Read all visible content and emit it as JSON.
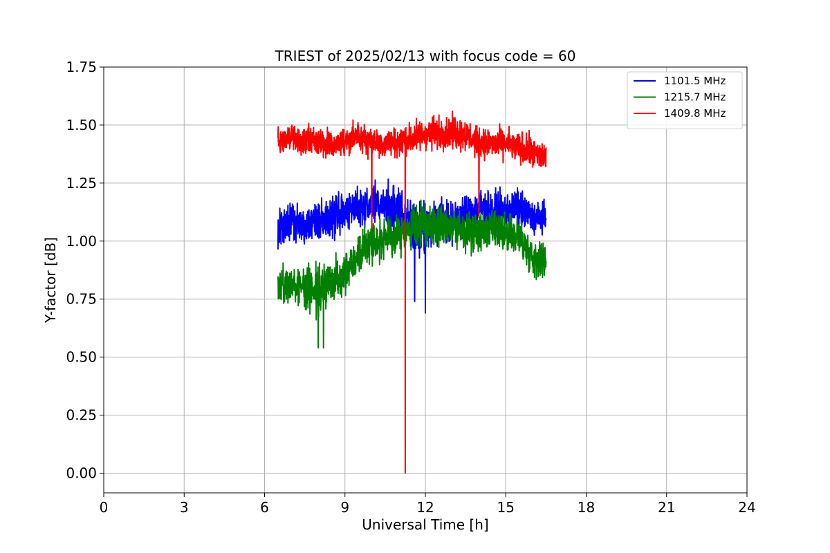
{
  "chart_data": {
    "type": "line",
    "title": "TRIEST of 2025/02/13 with focus code = 60",
    "xlabel": "Universal Time [h]",
    "ylabel": "Y-factor [dB]",
    "xlim": [
      0,
      24
    ],
    "ylim": [
      -0.085,
      1.75
    ],
    "xticks": [
      0,
      3,
      6,
      9,
      12,
      15,
      18,
      21,
      24
    ],
    "xtick_labels": [
      "0",
      "3",
      "6",
      "9",
      "12",
      "15",
      "18",
      "21",
      "24"
    ],
    "yticks": [
      0.0,
      0.25,
      0.5,
      0.75,
      1.0,
      1.25,
      1.5,
      1.75
    ],
    "ytick_labels": [
      "0.00",
      "0.25",
      "0.50",
      "0.75",
      "1.00",
      "1.25",
      "1.50",
      "1.75"
    ],
    "grid": true,
    "legend_position": "top-right",
    "series": [
      {
        "name": "1101.5 MHz",
        "color": "#0000ff",
        "x": [
          6.5,
          7.0,
          7.5,
          8.0,
          8.5,
          9.0,
          9.5,
          10.0,
          10.5,
          11.0,
          11.5,
          12.0,
          12.5,
          13.0,
          13.5,
          14.0,
          14.5,
          15.0,
          15.5,
          16.0,
          16.5
        ],
        "y": [
          1.05,
          1.08,
          1.07,
          1.09,
          1.1,
          1.13,
          1.15,
          1.16,
          1.15,
          1.12,
          1.05,
          1.05,
          1.1,
          1.08,
          1.12,
          1.15,
          1.12,
          1.13,
          1.14,
          1.1,
          1.1
        ],
        "spread": [
          0.1,
          0.11,
          0.11,
          0.12,
          0.12,
          0.12,
          0.12,
          0.12,
          0.14,
          0.16,
          0.18,
          0.15,
          0.13,
          0.13,
          0.12,
          0.12,
          0.12,
          0.12,
          0.12,
          0.1,
          0.1
        ],
        "outliers": [
          {
            "x": 11.6,
            "y": 0.74
          },
          {
            "x": 12.0,
            "y": 0.69
          }
        ]
      },
      {
        "name": "1215.7 MHz",
        "color": "#008000",
        "x": [
          6.5,
          7.0,
          7.5,
          8.0,
          8.5,
          9.0,
          9.5,
          10.0,
          10.5,
          11.0,
          11.5,
          12.0,
          12.5,
          13.0,
          13.5,
          14.0,
          14.5,
          15.0,
          15.5,
          16.0,
          16.5
        ],
        "y": [
          0.8,
          0.82,
          0.8,
          0.78,
          0.82,
          0.87,
          0.95,
          1.0,
          1.0,
          1.03,
          1.05,
          1.07,
          1.08,
          1.07,
          1.03,
          1.04,
          1.05,
          1.03,
          1.02,
          0.93,
          0.92
        ],
        "spread": [
          0.11,
          0.12,
          0.13,
          0.14,
          0.14,
          0.14,
          0.13,
          0.13,
          0.12,
          0.12,
          0.12,
          0.13,
          0.13,
          0.12,
          0.12,
          0.12,
          0.12,
          0.12,
          0.12,
          0.12,
          0.1
        ],
        "outliers": [
          {
            "x": 8.0,
            "y": 0.54
          },
          {
            "x": 8.2,
            "y": 0.54
          }
        ]
      },
      {
        "name": "1409.8 MHz",
        "color": "#ff0000",
        "x": [
          6.5,
          7.0,
          7.5,
          8.0,
          8.5,
          9.0,
          9.5,
          10.0,
          10.5,
          11.0,
          11.5,
          12.0,
          12.5,
          13.0,
          13.5,
          14.0,
          14.5,
          15.0,
          15.5,
          16.0,
          16.5
        ],
        "y": [
          1.43,
          1.45,
          1.43,
          1.42,
          1.42,
          1.43,
          1.45,
          1.43,
          1.42,
          1.43,
          1.44,
          1.46,
          1.47,
          1.47,
          1.46,
          1.42,
          1.42,
          1.42,
          1.4,
          1.38,
          1.36
        ],
        "spread": [
          0.08,
          0.09,
          0.09,
          0.1,
          0.09,
          0.09,
          0.08,
          0.09,
          0.09,
          0.09,
          0.1,
          0.1,
          0.1,
          0.1,
          0.1,
          0.09,
          0.09,
          0.09,
          0.1,
          0.1,
          0.09
        ],
        "outliers": [
          {
            "x": 11.25,
            "y": 0.0
          },
          {
            "x": 10.0,
            "y": 1.05
          },
          {
            "x": 14.0,
            "y": 1.1
          }
        ]
      }
    ]
  }
}
